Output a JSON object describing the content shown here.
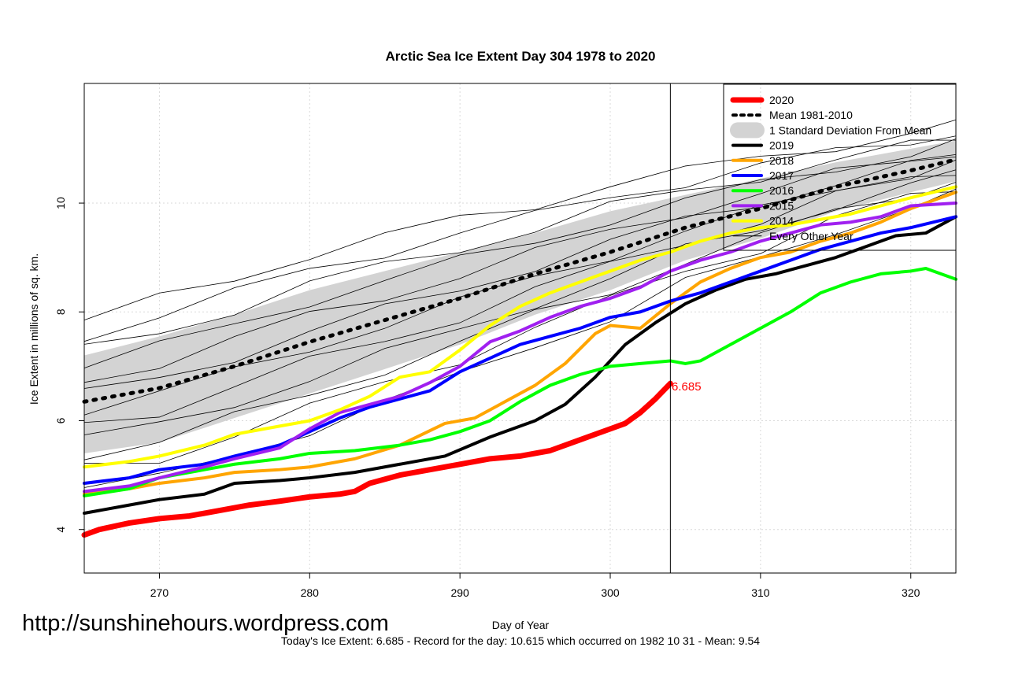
{
  "chart_data": {
    "type": "line",
    "title": "Arctic Sea Ice Extent Day 304 1978 to 2020",
    "xlabel": "Day of Year",
    "ylabel": "Ice Extent in millions of sq. km.",
    "xlim": [
      265,
      323
    ],
    "ylim": [
      3.2,
      12.2
    ],
    "xticks": [
      270,
      280,
      290,
      300,
      310,
      320
    ],
    "yticks": [
      4,
      6,
      8,
      10
    ],
    "current_day": 304,
    "current_value_label": "6.685",
    "footer": "Today's Ice Extent: 6.685  - Record for the day: 10.615 which occurred on 1982 10 31  - Mean: 9.54",
    "legend_position": "top-right",
    "legend": [
      {
        "label": "2020",
        "color": "#ff0000",
        "style": "thick"
      },
      {
        "label": "Mean 1981-2010",
        "color": "#000000",
        "style": "dashed"
      },
      {
        "label": "1 Standard Deviation From Mean",
        "color": "#d3d3d3",
        "style": "band"
      },
      {
        "label": "2019",
        "color": "#000000",
        "style": "line"
      },
      {
        "label": "2018",
        "color": "#ffa500",
        "style": "line"
      },
      {
        "label": "2017",
        "color": "#0000ff",
        "style": "line"
      },
      {
        "label": "2016",
        "color": "#00ff00",
        "style": "line"
      },
      {
        "label": "2015",
        "color": "#a020f0",
        "style": "line"
      },
      {
        "label": "2014",
        "color": "#ffff00",
        "style": "line"
      },
      {
        "label": "Every Other Year",
        "color": "#000000",
        "style": "thin"
      }
    ],
    "mean": {
      "x": [
        265,
        270,
        275,
        280,
        285,
        290,
        295,
        300,
        305,
        310,
        315,
        320,
        323
      ],
      "y": [
        6.35,
        6.6,
        7.0,
        7.45,
        7.85,
        8.25,
        8.7,
        9.1,
        9.55,
        9.9,
        10.3,
        10.6,
        10.8
      ]
    },
    "sd_band": {
      "x": [
        265,
        270,
        275,
        280,
        285,
        290,
        295,
        300,
        305,
        310,
        315,
        320,
        323
      ],
      "upper": [
        7.2,
        7.55,
        7.95,
        8.4,
        8.75,
        9.1,
        9.45,
        9.85,
        10.15,
        10.45,
        10.75,
        11.0,
        11.15
      ],
      "lower": [
        5.4,
        5.6,
        6.05,
        6.5,
        6.95,
        7.4,
        7.95,
        8.4,
        8.95,
        9.35,
        9.85,
        10.2,
        10.4
      ]
    },
    "series": [
      {
        "name": "2020",
        "color": "#ff0000",
        "width": 7,
        "x": [
          265,
          266,
          268,
          270,
          272,
          274,
          276,
          278,
          280,
          282,
          283,
          284,
          286,
          288,
          290,
          292,
          294,
          296,
          298,
          300,
          301,
          302,
          303,
          304
        ],
        "y": [
          3.9,
          4.0,
          4.12,
          4.2,
          4.25,
          4.35,
          4.45,
          4.52,
          4.6,
          4.65,
          4.7,
          4.85,
          5.0,
          5.1,
          5.2,
          5.3,
          5.35,
          5.45,
          5.65,
          5.85,
          5.95,
          6.15,
          6.4,
          6.685
        ]
      },
      {
        "name": "2019",
        "color": "#000000",
        "width": 4,
        "x": [
          265,
          268,
          270,
          273,
          275,
          278,
          280,
          283,
          286,
          289,
          292,
          295,
          297,
          299,
          301,
          303,
          305,
          307,
          309,
          311,
          313,
          315,
          317,
          319,
          321,
          323
        ],
        "y": [
          4.3,
          4.45,
          4.55,
          4.65,
          4.85,
          4.9,
          4.95,
          5.05,
          5.2,
          5.35,
          5.7,
          6.0,
          6.3,
          6.8,
          7.4,
          7.8,
          8.15,
          8.4,
          8.6,
          8.7,
          8.85,
          9.0,
          9.2,
          9.4,
          9.45,
          9.75
        ]
      },
      {
        "name": "2018",
        "color": "#ffa500",
        "width": 4,
        "x": [
          265,
          268,
          270,
          273,
          275,
          278,
          280,
          283,
          286,
          289,
          291,
          293,
          295,
          297,
          299,
          300,
          302,
          304,
          306,
          308,
          310,
          312,
          314,
          316,
          318,
          320,
          323
        ],
        "y": [
          4.65,
          4.75,
          4.85,
          4.95,
          5.05,
          5.1,
          5.15,
          5.3,
          5.55,
          5.95,
          6.05,
          6.35,
          6.65,
          7.05,
          7.6,
          7.75,
          7.7,
          8.15,
          8.55,
          8.8,
          9.0,
          9.1,
          9.3,
          9.45,
          9.65,
          9.9,
          10.2
        ]
      },
      {
        "name": "2017",
        "color": "#0000ff",
        "width": 4,
        "x": [
          265,
          268,
          270,
          273,
          275,
          278,
          280,
          282,
          284,
          286,
          288,
          290,
          292,
          294,
          296,
          298,
          300,
          302,
          304,
          306,
          308,
          310,
          312,
          314,
          316,
          318,
          320,
          323
        ],
        "y": [
          4.85,
          4.95,
          5.1,
          5.2,
          5.35,
          5.55,
          5.8,
          6.05,
          6.25,
          6.4,
          6.55,
          6.9,
          7.15,
          7.4,
          7.55,
          7.7,
          7.9,
          8.0,
          8.2,
          8.35,
          8.55,
          8.75,
          8.95,
          9.15,
          9.3,
          9.45,
          9.55,
          9.75
        ]
      },
      {
        "name": "2016",
        "color": "#00ff00",
        "width": 4,
        "x": [
          265,
          268,
          270,
          273,
          275,
          278,
          280,
          283,
          286,
          288,
          290,
          292,
          294,
          296,
          298,
          300,
          302,
          304,
          305,
          306,
          308,
          310,
          312,
          314,
          316,
          318,
          320,
          321,
          323
        ],
        "y": [
          4.62,
          4.75,
          4.95,
          5.1,
          5.2,
          5.3,
          5.4,
          5.45,
          5.55,
          5.65,
          5.8,
          6.0,
          6.35,
          6.65,
          6.85,
          7.0,
          7.05,
          7.1,
          7.05,
          7.1,
          7.4,
          7.7,
          8.0,
          8.35,
          8.55,
          8.7,
          8.75,
          8.8,
          8.6
        ]
      },
      {
        "name": "2015",
        "color": "#a020f0",
        "width": 4,
        "x": [
          265,
          268,
          270,
          273,
          275,
          278,
          280,
          282,
          284,
          286,
          288,
          290,
          292,
          294,
          296,
          298,
          300,
          302,
          304,
          306,
          308,
          310,
          312,
          314,
          316,
          318,
          320,
          323
        ],
        "y": [
          4.7,
          4.8,
          4.95,
          5.15,
          5.3,
          5.5,
          5.85,
          6.15,
          6.3,
          6.45,
          6.7,
          7.0,
          7.45,
          7.65,
          7.9,
          8.1,
          8.25,
          8.45,
          8.75,
          8.95,
          9.1,
          9.3,
          9.45,
          9.6,
          9.65,
          9.75,
          9.95,
          10.0
        ]
      },
      {
        "name": "2014",
        "color": "#ffff00",
        "width": 4,
        "x": [
          265,
          268,
          270,
          273,
          275,
          278,
          280,
          282,
          284,
          286,
          288,
          290,
          292,
          294,
          296,
          298,
          300,
          302,
          304,
          306,
          308,
          310,
          312,
          314,
          316,
          318,
          320,
          323
        ],
        "y": [
          5.15,
          5.25,
          5.35,
          5.55,
          5.75,
          5.9,
          6.0,
          6.2,
          6.45,
          6.8,
          6.9,
          7.3,
          7.75,
          8.1,
          8.35,
          8.55,
          8.75,
          8.95,
          9.1,
          9.3,
          9.45,
          9.55,
          9.6,
          9.7,
          9.8,
          9.95,
          10.1,
          10.3
        ]
      }
    ]
  }
}
